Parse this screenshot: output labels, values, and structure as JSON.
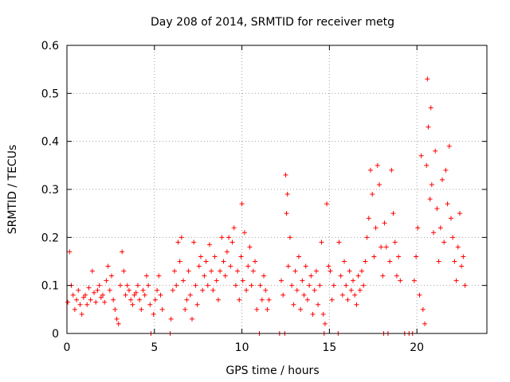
{
  "chart_data": {
    "type": "scatter",
    "title": "Day 208 of 2014, SRMTID for receiver metg",
    "xlabel": "GPS time / hours",
    "ylabel": "SRMTID / TECUs",
    "xlim": [
      0,
      24
    ],
    "ylim": [
      0,
      0.6
    ],
    "xticks": [
      0,
      5,
      10,
      15,
      20
    ],
    "xtick_labels": [
      "0",
      "5",
      "10",
      "15",
      "20"
    ],
    "yticks": [
      0,
      0.1,
      0.2,
      0.3,
      0.4,
      0.5,
      0.6
    ],
    "ytick_labels": [
      "0",
      "0.1",
      "0.2",
      "0.3",
      "0.4",
      "0.5",
      "0.6"
    ],
    "grid": true,
    "marker": "+",
    "color": "#ff0000",
    "series": [
      {
        "name": "SRMTID",
        "points": [
          [
            0.05,
            0.065
          ],
          [
            0.15,
            0.17
          ],
          [
            0.25,
            0.1
          ],
          [
            0.35,
            0.08
          ],
          [
            0.45,
            0.05
          ],
          [
            0.55,
            0.07
          ],
          [
            0.65,
            0.09
          ],
          [
            0.75,
            0.06
          ],
          [
            0.85,
            0.04
          ],
          [
            0.95,
            0.075
          ],
          [
            1.05,
            0.08
          ],
          [
            1.15,
            0.06
          ],
          [
            1.25,
            0.095
          ],
          [
            1.35,
            0.07
          ],
          [
            1.45,
            0.13
          ],
          [
            1.55,
            0.085
          ],
          [
            1.65,
            0.065
          ],
          [
            1.75,
            0.09
          ],
          [
            1.85,
            0.1
          ],
          [
            1.95,
            0.075
          ],
          [
            2.05,
            0.08
          ],
          [
            2.15,
            0.065
          ],
          [
            2.25,
            0.11
          ],
          [
            2.35,
            0.14
          ],
          [
            2.45,
            0.09
          ],
          [
            2.55,
            0.12
          ],
          [
            2.65,
            0.07
          ],
          [
            2.75,
            0.05
          ],
          [
            2.85,
            0.03
          ],
          [
            2.95,
            0.02
          ],
          [
            3.05,
            0.1
          ],
          [
            3.15,
            0.17
          ],
          [
            3.25,
            0.13
          ],
          [
            3.35,
            0.08
          ],
          [
            3.45,
            0.1
          ],
          [
            3.55,
            0.09
          ],
          [
            3.65,
            0.07
          ],
          [
            3.75,
            0.06
          ],
          [
            3.85,
            0.08
          ],
          [
            3.95,
            0.085
          ],
          [
            4.05,
            0.1
          ],
          [
            4.15,
            0.07
          ],
          [
            4.25,
            0.05
          ],
          [
            4.35,
            0.09
          ],
          [
            4.45,
            0.08
          ],
          [
            4.55,
            0.12
          ],
          [
            4.65,
            0.1
          ],
          [
            4.75,
            0.06
          ],
          [
            4.8,
            0.0
          ],
          [
            4.95,
            0.04
          ],
          [
            5.05,
            0.07
          ],
          [
            5.15,
            0.09
          ],
          [
            5.25,
            0.12
          ],
          [
            5.35,
            0.08
          ],
          [
            5.45,
            0.05
          ],
          [
            5.9,
            0.0
          ],
          [
            5.95,
            0.03
          ],
          [
            6.05,
            0.09
          ],
          [
            6.15,
            0.13
          ],
          [
            6.25,
            0.1
          ],
          [
            6.35,
            0.19
          ],
          [
            6.45,
            0.15
          ],
          [
            6.55,
            0.2
          ],
          [
            6.65,
            0.11
          ],
          [
            6.75,
            0.05
          ],
          [
            6.85,
            0.07
          ],
          [
            6.95,
            0.13
          ],
          [
            7.05,
            0.08
          ],
          [
            7.15,
            0.03
          ],
          [
            7.25,
            0.19
          ],
          [
            7.35,
            0.1
          ],
          [
            7.45,
            0.06
          ],
          [
            7.55,
            0.14
          ],
          [
            7.65,
            0.16
          ],
          [
            7.75,
            0.09
          ],
          [
            7.85,
            0.12
          ],
          [
            7.95,
            0.15
          ],
          [
            8.05,
            0.1
          ],
          [
            8.15,
            0.185
          ],
          [
            8.25,
            0.13
          ],
          [
            8.35,
            0.09
          ],
          [
            8.45,
            0.16
          ],
          [
            8.55,
            0.11
          ],
          [
            8.65,
            0.07
          ],
          [
            8.75,
            0.13
          ],
          [
            8.85,
            0.2
          ],
          [
            8.95,
            0.15
          ],
          [
            9.05,
            0.12
          ],
          [
            9.15,
            0.17
          ],
          [
            9.25,
            0.2
          ],
          [
            9.35,
            0.14
          ],
          [
            9.45,
            0.19
          ],
          [
            9.55,
            0.22
          ],
          [
            9.65,
            0.1
          ],
          [
            9.75,
            0.13
          ],
          [
            9.85,
            0.07
          ],
          [
            9.95,
            0.16
          ],
          [
            10.0,
            0.27
          ],
          [
            10.05,
            0.11
          ],
          [
            10.15,
            0.21
          ],
          [
            10.25,
            0.09
          ],
          [
            10.35,
            0.14
          ],
          [
            10.45,
            0.18
          ],
          [
            10.55,
            0.1
          ],
          [
            10.65,
            0.13
          ],
          [
            10.75,
            0.15
          ],
          [
            10.85,
            0.05
          ],
          [
            11.0,
            0.0
          ],
          [
            11.05,
            0.1
          ],
          [
            11.15,
            0.07
          ],
          [
            11.25,
            0.12
          ],
          [
            11.35,
            0.09
          ],
          [
            11.45,
            0.05
          ],
          [
            11.55,
            0.07
          ],
          [
            12.15,
            0.0
          ],
          [
            12.25,
            0.11
          ],
          [
            12.35,
            0.08
          ],
          [
            12.45,
            0.0
          ],
          [
            12.5,
            0.33
          ],
          [
            12.55,
            0.25
          ],
          [
            12.6,
            0.29
          ],
          [
            12.65,
            0.14
          ],
          [
            12.75,
            0.2
          ],
          [
            12.85,
            0.1
          ],
          [
            12.95,
            0.06
          ],
          [
            13.05,
            0.13
          ],
          [
            13.15,
            0.09
          ],
          [
            13.25,
            0.16
          ],
          [
            13.35,
            0.05
          ],
          [
            13.45,
            0.11
          ],
          [
            13.55,
            0.08
          ],
          [
            13.65,
            0.14
          ],
          [
            13.75,
            0.07
          ],
          [
            13.85,
            0.1
          ],
          [
            13.95,
            0.12
          ],
          [
            14.05,
            0.04
          ],
          [
            14.15,
            0.09
          ],
          [
            14.25,
            0.13
          ],
          [
            14.35,
            0.06
          ],
          [
            14.45,
            0.1
          ],
          [
            14.55,
            0.19
          ],
          [
            14.65,
            0.04
          ],
          [
            14.7,
            0.0
          ],
          [
            14.75,
            0.02
          ],
          [
            14.85,
            0.27
          ],
          [
            14.95,
            0.14
          ],
          [
            15.05,
            0.13
          ],
          [
            15.15,
            0.07
          ],
          [
            15.25,
            0.1
          ],
          [
            15.5,
            0.0
          ],
          [
            15.55,
            0.19
          ],
          [
            15.65,
            0.12
          ],
          [
            15.75,
            0.08
          ],
          [
            15.85,
            0.15
          ],
          [
            15.95,
            0.1
          ],
          [
            16.05,
            0.07
          ],
          [
            16.15,
            0.13
          ],
          [
            16.25,
            0.09
          ],
          [
            16.35,
            0.11
          ],
          [
            16.45,
            0.08
          ],
          [
            16.55,
            0.06
          ],
          [
            16.65,
            0.12
          ],
          [
            16.75,
            0.09
          ],
          [
            16.85,
            0.13
          ],
          [
            16.95,
            0.1
          ],
          [
            17.05,
            0.15
          ],
          [
            17.15,
            0.2
          ],
          [
            17.25,
            0.24
          ],
          [
            17.35,
            0.34
          ],
          [
            17.45,
            0.29
          ],
          [
            17.55,
            0.16
          ],
          [
            17.65,
            0.22
          ],
          [
            17.75,
            0.35
          ],
          [
            17.85,
            0.31
          ],
          [
            17.95,
            0.18
          ],
          [
            18.05,
            0.12
          ],
          [
            18.1,
            0.0
          ],
          [
            18.15,
            0.23
          ],
          [
            18.25,
            0.18
          ],
          [
            18.35,
            0.0
          ],
          [
            18.45,
            0.15
          ],
          [
            18.55,
            0.34
          ],
          [
            18.65,
            0.25
          ],
          [
            18.75,
            0.19
          ],
          [
            18.85,
            0.12
          ],
          [
            18.95,
            0.16
          ],
          [
            19.05,
            0.11
          ],
          [
            19.3,
            0.0
          ],
          [
            19.55,
            0.0
          ],
          [
            19.75,
            0.0
          ],
          [
            19.85,
            0.11
          ],
          [
            19.95,
            0.16
          ],
          [
            20.05,
            0.22
          ],
          [
            20.15,
            0.08
          ],
          [
            20.25,
            0.37
          ],
          [
            20.35,
            0.05
          ],
          [
            20.45,
            0.02
          ],
          [
            20.55,
            0.35
          ],
          [
            20.6,
            0.53
          ],
          [
            20.65,
            0.43
          ],
          [
            20.75,
            0.28
          ],
          [
            20.8,
            0.47
          ],
          [
            20.85,
            0.31
          ],
          [
            20.95,
            0.21
          ],
          [
            21.05,
            0.38
          ],
          [
            21.15,
            0.26
          ],
          [
            21.25,
            0.15
          ],
          [
            21.35,
            0.22
          ],
          [
            21.45,
            0.32
          ],
          [
            21.55,
            0.19
          ],
          [
            21.65,
            0.34
          ],
          [
            21.75,
            0.27
          ],
          [
            21.85,
            0.39
          ],
          [
            21.95,
            0.24
          ],
          [
            22.05,
            0.2
          ],
          [
            22.15,
            0.15
          ],
          [
            22.25,
            0.11
          ],
          [
            22.35,
            0.18
          ],
          [
            22.45,
            0.25
          ],
          [
            22.55,
            0.14
          ],
          [
            22.65,
            0.16
          ],
          [
            22.75,
            0.1
          ]
        ]
      }
    ]
  }
}
